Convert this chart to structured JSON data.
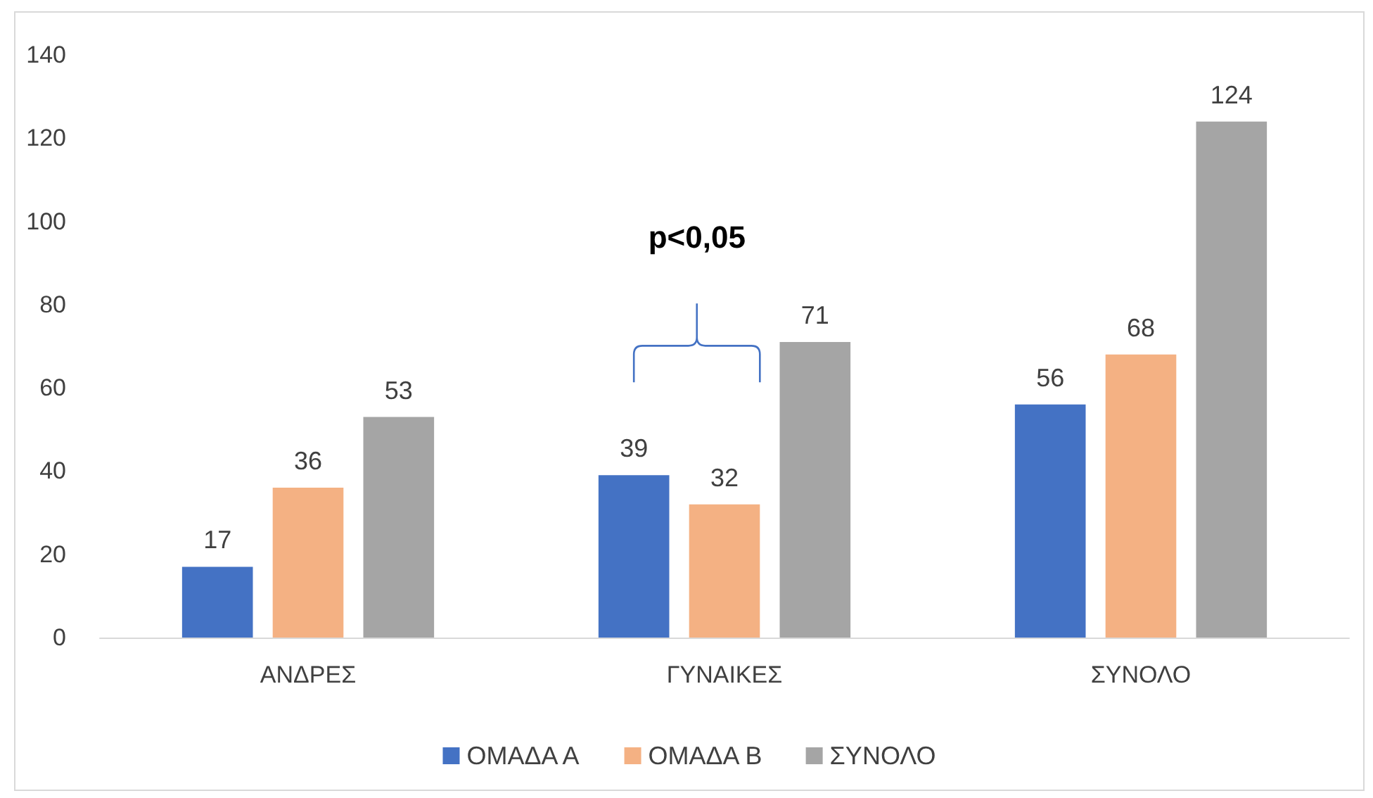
{
  "chart_data": {
    "type": "bar",
    "categories": [
      "ΑΝΔΡΕΣ",
      "ΓΥΝΑΙΚΕΣ",
      "ΣΥΝΟΛΟ"
    ],
    "series": [
      {
        "name": "ΟΜΑΔΑ Α",
        "color": "#4472c4",
        "values": [
          17,
          39,
          56
        ]
      },
      {
        "name": "ΟΜΑΔΑ Β",
        "color": "#f4b183",
        "values": [
          36,
          32,
          68
        ]
      },
      {
        "name": "ΣΥΝΟΛΟ",
        "color": "#a5a5a5",
        "values": [
          53,
          71,
          124
        ]
      }
    ],
    "ylim": [
      0,
      140
    ],
    "yticks": [
      0,
      20,
      40,
      60,
      80,
      100,
      120,
      140
    ],
    "grid": false,
    "legend": "bottom",
    "data_labels": true,
    "annotations": [
      "p<0,05"
    ]
  }
}
